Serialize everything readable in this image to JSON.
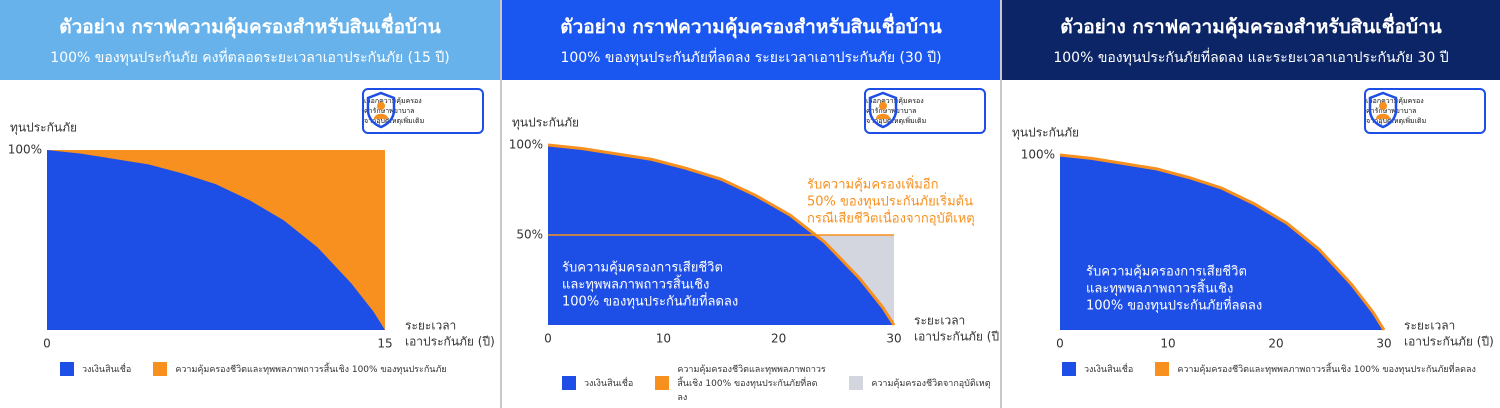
{
  "chart_data": [
    {
      "type": "area",
      "title": "ตัวอย่าง กราฟความคุ้มครองสำหรับสินเชื่อบ้าน",
      "subtitle": "100% ของทุนประกันภัย คงที่ตลอดระยะเวลาเอาประกันภัย (15 ปี)",
      "header_color": "#67b2ea",
      "badge": [
        "เลือกความคุ้มครอง",
        "ค่ารักษาพยาบาล",
        "จากอุบัติเหตุเพิ่มเติม"
      ],
      "ylabel": "ทุนประกันภัย",
      "xlabel": [
        "ระยะเวลา",
        "เอาประกันภัย (ปี)"
      ],
      "x": [
        0,
        1.5,
        3,
        4.5,
        6,
        7.5,
        9,
        10.5,
        12,
        13.5,
        14,
        14.5,
        15
      ],
      "series": [
        {
          "name": "วงเงินสินเชื่อ",
          "color": "#1d4ee6",
          "style": "area",
          "values": [
            100,
            98,
            95,
            92,
            87,
            81,
            72,
            61,
            46,
            26,
            18,
            10,
            0
          ]
        },
        {
          "name": "ความคุ้มครองชีวิตและทุพพลภาพถาวรสิ้นเชิง 100% ของทุนประกันภัย",
          "color": "#f7901e",
          "style": "area",
          "values": [
            100,
            100,
            100,
            100,
            100,
            100,
            100,
            100,
            100,
            100,
            100,
            100,
            100
          ]
        }
      ],
      "xlim": [
        0,
        15
      ],
      "xticks": [
        0,
        15
      ],
      "ylim": [
        0,
        100
      ],
      "yticks": [
        {
          "value": 100,
          "label": "100%"
        }
      ],
      "annotations": []
    },
    {
      "type": "area",
      "title": "ตัวอย่าง กราฟความคุ้มครองสำหรับสินเชื่อบ้าน",
      "subtitle": "100% ของทุนประกันภัยที่ลดลง ระยะเวลาเอาประกันภัย (30 ปี)",
      "header_color": "#1a56f0",
      "badge": [
        "เลือกความคุ้มครอง",
        "ค่ารักษาพยาบาล",
        "จากอุบัติเหตุเพิ่มเติม"
      ],
      "ylabel": "ทุนประกันภัย",
      "xlabel": [
        "ระยะเวลา",
        "เอาประกันภัย (ปี)"
      ],
      "x": [
        0,
        3,
        6,
        9,
        12,
        15,
        18,
        21,
        24,
        27,
        28,
        29,
        30
      ],
      "series": [
        {
          "name": "วงเงินสินเชื่อ",
          "color": "#1d4ee6",
          "style": "area",
          "values": [
            100,
            98,
            95,
            92,
            87,
            81,
            72,
            61,
            46,
            26,
            18,
            10,
            0
          ]
        },
        {
          "name": "ความคุ้มครองชีวิตและทุพพลภาพถาวรสิ้นเชิง 100% ของทุนประกันภัยที่ลดลง",
          "color": "#f7901e",
          "style": "line",
          "values": [
            100,
            98,
            95,
            92,
            87,
            81,
            72,
            61,
            46,
            26,
            18,
            10,
            0
          ]
        },
        {
          "name": "ความคุ้มครองชีวิตจากอุบัติเหตุ",
          "color": "#d3d6de",
          "style": "area",
          "outline": "#f7901e",
          "values": [
            50,
            50,
            50,
            50,
            50,
            50,
            50,
            50,
            50,
            50,
            50,
            50,
            50
          ]
        }
      ],
      "xlim": [
        0,
        30
      ],
      "xticks": [
        0,
        10,
        20,
        30
      ],
      "ylim": [
        0,
        100
      ],
      "yticks": [
        {
          "value": 50,
          "label": "50%"
        },
        {
          "value": 100,
          "label": "100%"
        }
      ],
      "annotations": [
        {
          "text": [
            "รับความคุ้มครองเพิ่มอีก",
            "50% ของทุนประกันภัยเริ่มต้น",
            "กรณีเสียชีวิตเนื่องจากอุบัติเหตุ"
          ],
          "color": "#f7901e"
        },
        {
          "text": [
            "รับความคุ้มครองการเสียชีวิต",
            "และทุพพลภาพถาวรสิ้นเชิง",
            "100% ของทุนประกันภัยที่ลดลง"
          ],
          "color": "#ffffff"
        }
      ]
    },
    {
      "type": "area",
      "title": "ตัวอย่าง กราฟความคุ้มครองสำหรับสินเชื่อบ้าน",
      "subtitle": "100% ของทุนประกันภัยที่ลดลง และระยะเวลาเอาประกันภัย 30 ปี",
      "header_color": "#0c2566",
      "badge": [
        "เลือกความคุ้มครอง",
        "ค่ารักษาพยาบาล",
        "จากอุบัติเหตุเพิ่มเติม"
      ],
      "ylabel": "ทุนประกันภัย",
      "xlabel": [
        "ระยะเวลา",
        "เอาประกันภัย (ปี)"
      ],
      "x": [
        0,
        3,
        6,
        9,
        12,
        15,
        18,
        21,
        24,
        27,
        28,
        29,
        30
      ],
      "series": [
        {
          "name": "วงเงินสินเชื่อ",
          "color": "#1d4ee6",
          "style": "area",
          "values": [
            100,
            98,
            95,
            92,
            87,
            81,
            72,
            61,
            46,
            26,
            18,
            10,
            0
          ]
        },
        {
          "name": "ความคุ้มครองชีวิตและทุพพลภาพถาวรสิ้นเชิง 100% ของทุนประกันภัยที่ลดลง",
          "color": "#f7901e",
          "style": "line",
          "values": [
            100,
            98,
            95,
            92,
            87,
            81,
            72,
            61,
            46,
            26,
            18,
            10,
            0
          ]
        }
      ],
      "xlim": [
        0,
        30
      ],
      "xticks": [
        0,
        10,
        20,
        30
      ],
      "ylim": [
        0,
        100
      ],
      "yticks": [
        {
          "value": 100,
          "label": "100%"
        }
      ],
      "annotations": [
        {
          "text": [
            "รับความคุ้มครองการเสียชีวิต",
            "และทุพพลภาพถาวรสิ้นเชิง",
            "100% ของทุนประกันภัยที่ลดลง"
          ],
          "color": "#ffffff"
        }
      ]
    }
  ]
}
